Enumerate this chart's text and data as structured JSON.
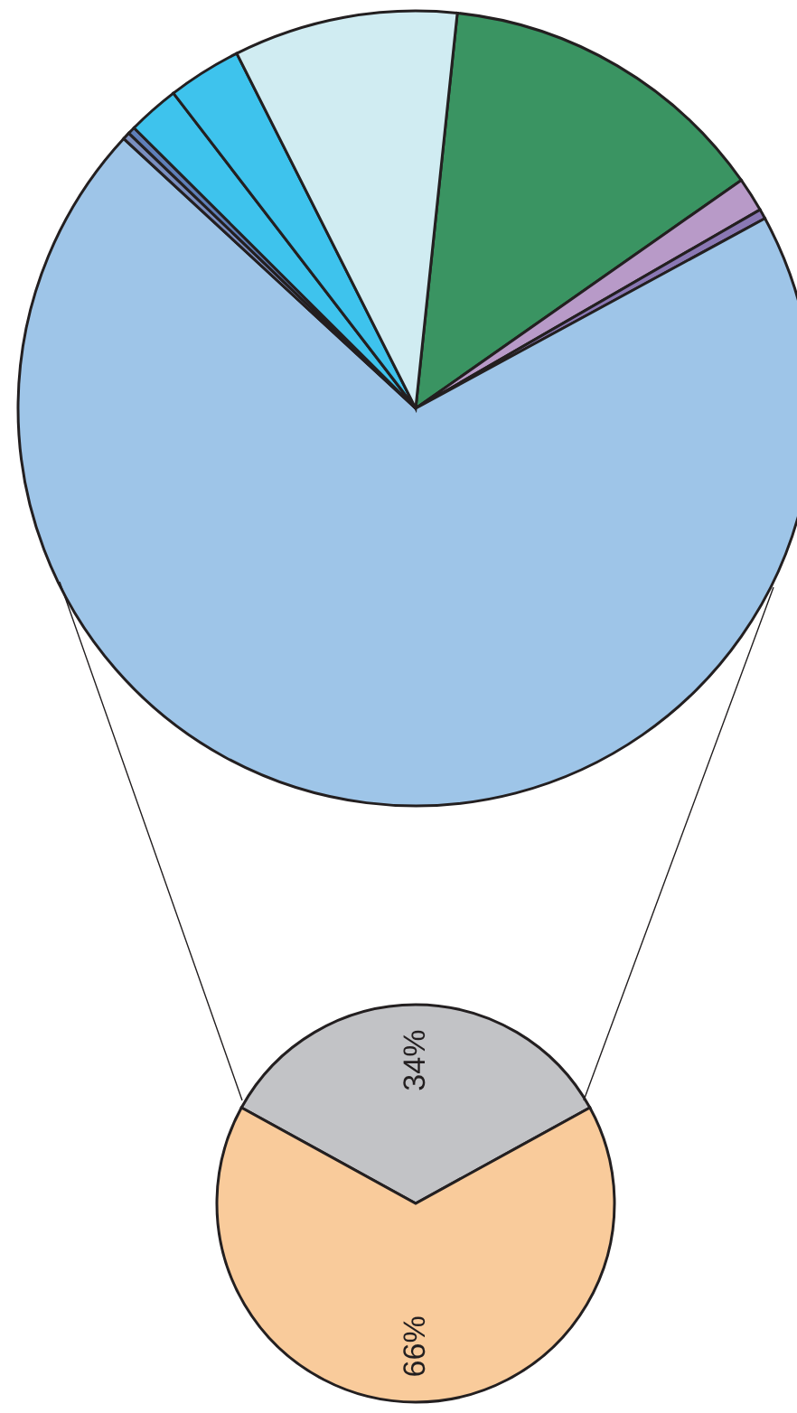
{
  "chart_data": [
    {
      "type": "pie",
      "categories": [
        null,
        null,
        null,
        null,
        null,
        null,
        null,
        null,
        null
      ],
      "values": [
        13.6,
        1.4,
        0.4,
        69.8,
        0.3,
        0.3,
        2.1,
        3.0,
        9.1
      ],
      "colors": [
        "#3a9462",
        "#b89ac8",
        "#8a78b4",
        "#9ec5e8",
        "#7a8fc0",
        "#5f7fb8",
        "#3ec3ed",
        "#3ec3ed",
        "#d0ecf2"
      ]
    },
    {
      "type": "pie",
      "categories": [
        null,
        null
      ],
      "values": [
        34,
        66
      ],
      "colors": [
        "#c2c3c6",
        "#f9cb9b"
      ],
      "value_labels": [
        "34%",
        "66%"
      ]
    }
  ]
}
